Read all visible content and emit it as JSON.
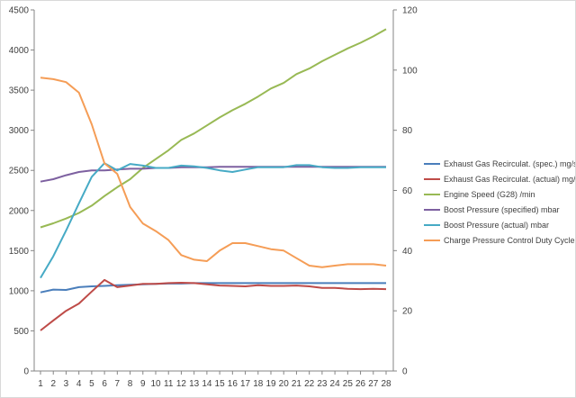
{
  "chart_data": {
    "type": "line",
    "title": "",
    "xlabel": "",
    "ylabel": "",
    "y2label": "",
    "x": [
      1,
      2,
      3,
      4,
      5,
      6,
      7,
      8,
      9,
      10,
      11,
      12,
      13,
      14,
      15,
      16,
      17,
      18,
      19,
      20,
      21,
      22,
      23,
      24,
      25,
      26,
      27,
      28
    ],
    "ylim": [
      0,
      4500
    ],
    "y_ticks": [
      0,
      500,
      1000,
      1500,
      2000,
      2500,
      3000,
      3500,
      4000,
      4500
    ],
    "y2lim": [
      0,
      120
    ],
    "y2_ticks": [
      0,
      20,
      40,
      60,
      80,
      100,
      120
    ],
    "grid": false,
    "legend_position": "right",
    "series": [
      {
        "name": "Exhaust Gas Recirculat. (spec.)  mg/str",
        "axis": "left",
        "color": "#4a7ebb",
        "values": [
          980,
          1015,
          1010,
          1045,
          1055,
          1060,
          1070,
          1075,
          1080,
          1085,
          1090,
          1090,
          1095,
          1095,
          1095,
          1095,
          1095,
          1095,
          1095,
          1095,
          1095,
          1095,
          1095,
          1095,
          1095,
          1095,
          1095,
          1095
        ]
      },
      {
        "name": "Exhaust Gas Recirculat. (actual)  mg/str",
        "axis": "left",
        "color": "#be4b48",
        "values": [
          505,
          630,
          750,
          840,
          990,
          1135,
          1045,
          1065,
          1085,
          1085,
          1095,
          1100,
          1095,
          1080,
          1065,
          1060,
          1055,
          1070,
          1060,
          1060,
          1065,
          1055,
          1035,
          1035,
          1025,
          1020,
          1025,
          1020
        ]
      },
      {
        "name": "Engine Speed (G28)  /min",
        "axis": "left",
        "color": "#98b954",
        "values": [
          1790,
          1840,
          1900,
          1970,
          2060,
          2180,
          2290,
          2390,
          2530,
          2640,
          2750,
          2880,
          2960,
          3060,
          3160,
          3250,
          3330,
          3420,
          3520,
          3590,
          3700,
          3770,
          3860,
          3940,
          4020,
          4090,
          4170,
          4260
        ]
      },
      {
        "name": "Boost Pressure (specified)  mbar",
        "axis": "left",
        "color": "#7d60a0",
        "values": [
          2360,
          2390,
          2440,
          2480,
          2500,
          2500,
          2510,
          2520,
          2520,
          2530,
          2530,
          2540,
          2540,
          2540,
          2545,
          2545,
          2545,
          2545,
          2545,
          2545,
          2545,
          2545,
          2545,
          2545,
          2545,
          2545,
          2545,
          2545
        ]
      },
      {
        "name": "Boost Pressure (actual)  mbar",
        "axis": "left",
        "color": "#46aac5",
        "values": [
          1160,
          1430,
          1750,
          2090,
          2420,
          2590,
          2500,
          2580,
          2560,
          2530,
          2530,
          2560,
          2550,
          2530,
          2500,
          2480,
          2510,
          2540,
          2540,
          2540,
          2565,
          2565,
          2540,
          2530,
          2530,
          2540,
          2540,
          2540
        ]
      },
      {
        "name": "Charge Pressure Control Duty Cycle  %",
        "axis": "right",
        "color": "#f59d56",
        "values": [
          97.5,
          97,
          96,
          92.5,
          82,
          69,
          65.5,
          54.5,
          49,
          46.5,
          43.5,
          38.5,
          37,
          36.5,
          40,
          42.5,
          42.5,
          41.5,
          40.5,
          40,
          37.5,
          35,
          34.5,
          35,
          35.5,
          35.5,
          35.5,
          35
        ]
      }
    ]
  }
}
